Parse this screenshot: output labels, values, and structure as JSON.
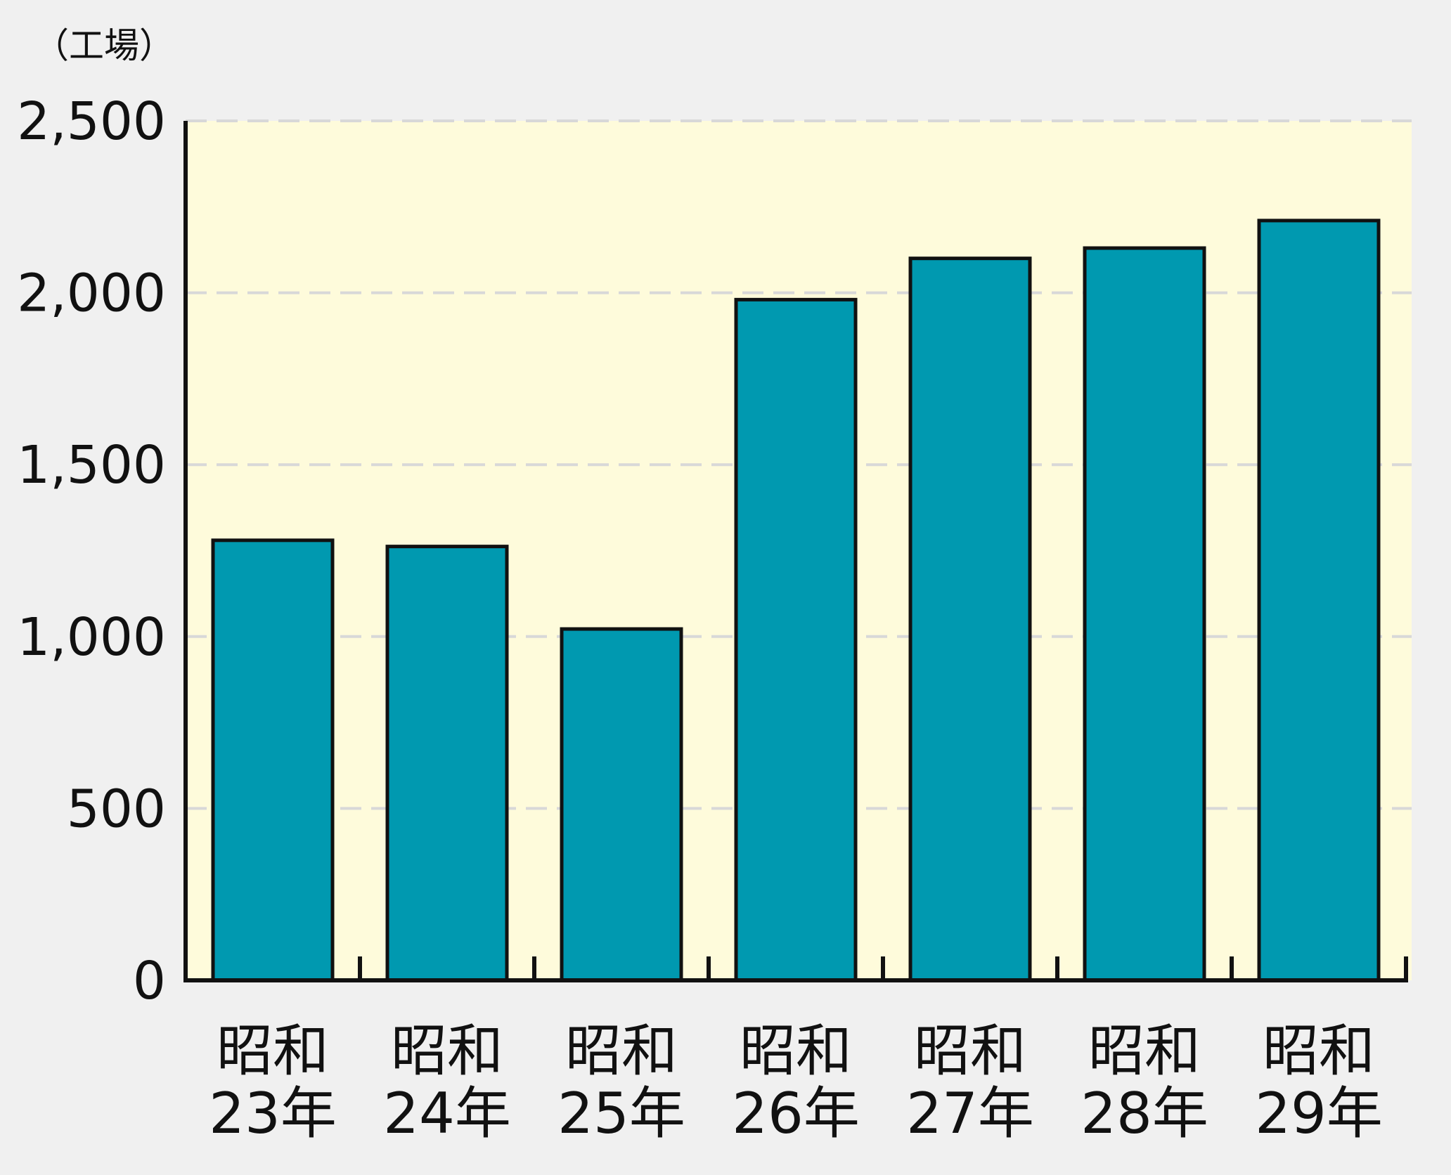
{
  "chart_data": {
    "type": "bar",
    "unit_label": "（工場）",
    "categories": [
      {
        "line1": "昭和",
        "line2": "23年"
      },
      {
        "line1": "昭和",
        "line2": "24年"
      },
      {
        "line1": "昭和",
        "line2": "25年"
      },
      {
        "line1": "昭和",
        "line2": "26年"
      },
      {
        "line1": "昭和",
        "line2": "27年"
      },
      {
        "line1": "昭和",
        "line2": "28年"
      },
      {
        "line1": "昭和",
        "line2": "29年"
      }
    ],
    "values": [
      1280,
      1262,
      1022,
      1980,
      2100,
      2130,
      2210
    ],
    "ylim": [
      0,
      2500
    ],
    "yticks": [
      {
        "value": 0,
        "label": "0"
      },
      {
        "value": 500,
        "label": "500"
      },
      {
        "value": 1000,
        "label": "1,000"
      },
      {
        "value": 1500,
        "label": "1,500"
      },
      {
        "value": 2000,
        "label": "2,000"
      },
      {
        "value": 2500,
        "label": "2,500"
      }
    ],
    "grid": "dashed horizontal",
    "colors": {
      "plot_background": "#fefbdb",
      "bar_fill": "#0099b0",
      "bar_stroke": "#111111",
      "gridline": "#d8d8d8",
      "axis": "#111111"
    }
  }
}
